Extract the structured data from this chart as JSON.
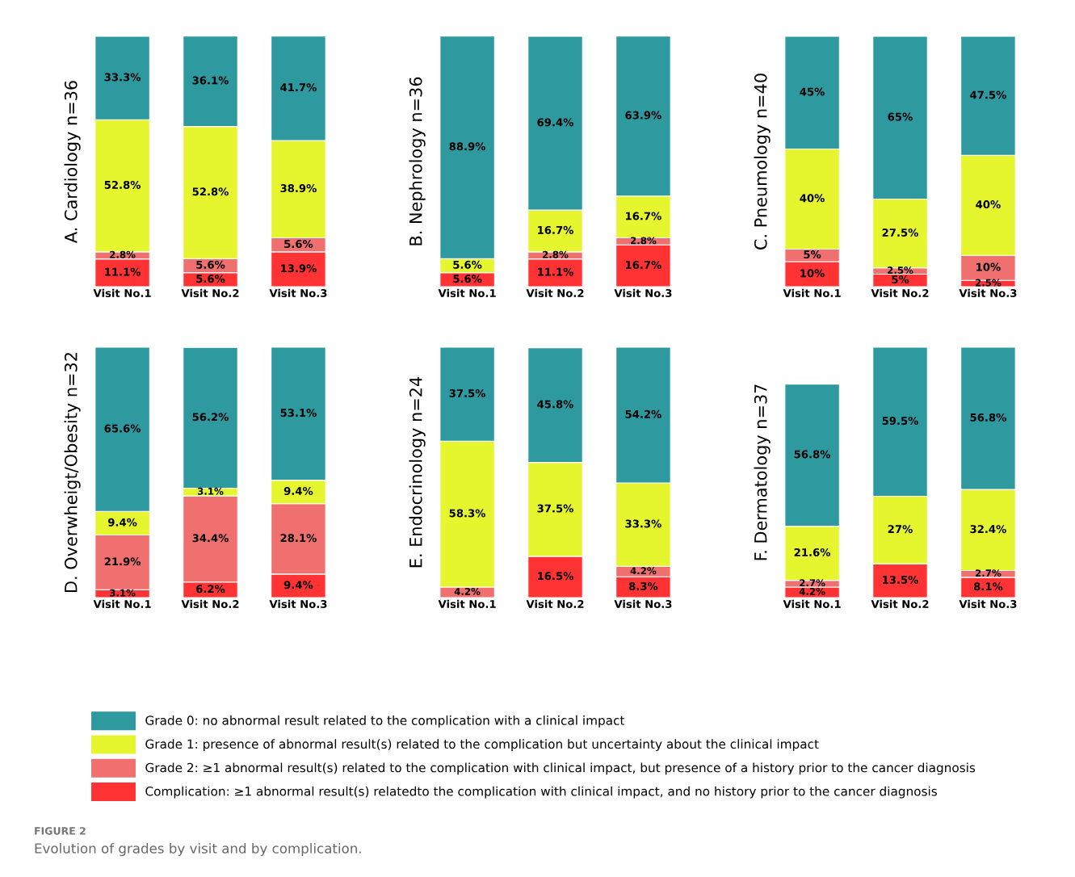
{
  "chart_data": [
    {
      "type": "bar",
      "stacked": true,
      "ylabel": "A. Cardiology n=36",
      "categories": [
        "Visit No.1",
        "Visit No.2",
        "Visit No.3"
      ],
      "ylim": [
        0,
        100
      ],
      "tick_labels": "x",
      "legend": "bottom",
      "annotations": [
        "FIGURE 2",
        "Evolution of grades by visit and by complication."
      ],
      "series": [
        {
          "name": "Complication: ≥1 abnormal result(s) relatedto the complication with clinical impact, and no history prior to the cancer diagnosis",
          "color": "#ff3333",
          "values": [
            11.1,
            5.6,
            13.9
          ],
          "value_labels": [
            "11.1%",
            "5.6%",
            "13.9%"
          ]
        },
        {
          "name": "Grade 2: ≥1 abnormal result(s) related to the complication with clinical impact, but presence of a history prior to the cancer diagnosis",
          "color": "#f07070",
          "values": [
            2.8,
            5.6,
            5.6
          ],
          "value_labels": [
            "2.8%",
            "5.6%",
            "5.6%"
          ]
        },
        {
          "name": "Grade 1: presence of abnormal result(s) related to the complication but uncertainty about the clinical impact",
          "color": "#e5f52e",
          "values": [
            52.8,
            52.8,
            38.9
          ],
          "value_labels": [
            "52.8%",
            "52.8%",
            "38.9%"
          ]
        },
        {
          "name": "Grade 0: no abnormal result related to the complication with a clinical impact",
          "color": "#2e9aa0",
          "values": [
            33.3,
            36.1,
            41.7
          ],
          "value_labels": [
            "33.3%",
            "36.1%",
            "41.7%"
          ]
        }
      ]
    },
    {
      "type": "bar",
      "stacked": true,
      "ylabel": "B. Nephrology n=36",
      "categories": [
        "Visit No.1",
        "Visit No.2",
        "Visit No.3"
      ],
      "ylim": [
        0,
        100
      ],
      "tick_labels": "x",
      "series": [
        {
          "color": "#ff3333",
          "values": [
            5.6,
            11.1,
            16.7
          ],
          "value_labels": [
            "5.6%",
            "11.1%",
            "16.7%"
          ]
        },
        {
          "color": "#f07070",
          "values": [
            null,
            2.8,
            2.8
          ],
          "value_labels": [
            null,
            "2.8%",
            "2.8%"
          ]
        },
        {
          "color": "#e5f52e",
          "values": [
            5.6,
            16.7,
            16.7
          ],
          "value_labels": [
            "5.6%",
            "16.7%",
            "16.7%"
          ]
        },
        {
          "color": "#2e9aa0",
          "values": [
            88.9,
            69.4,
            63.9
          ],
          "value_labels": [
            "88.9%",
            "69.4%",
            "63.9%"
          ]
        }
      ]
    },
    {
      "type": "bar",
      "stacked": true,
      "ylabel": "C. Pneumology n=40",
      "categories": [
        "Visit No.1",
        "Visit No.2",
        "Visit No.3"
      ],
      "ylim": [
        0,
        100
      ],
      "tick_labels": "x",
      "series": [
        {
          "color": "#ff3333",
          "values": [
            10,
            5,
            2.5
          ],
          "value_labels": [
            "10%",
            "5%",
            "2.5%"
          ]
        },
        {
          "color": "#f07070",
          "values": [
            5,
            2.5,
            10
          ],
          "value_labels": [
            "5%",
            "2.5%",
            "10%"
          ]
        },
        {
          "color": "#e5f52e",
          "values": [
            40,
            27.5,
            40
          ],
          "value_labels": [
            "40%",
            "27.5%",
            "40%"
          ]
        },
        {
          "color": "#2e9aa0",
          "values": [
            45,
            65,
            47.5
          ],
          "value_labels": [
            "45%",
            "65%",
            "47.5%"
          ]
        }
      ]
    },
    {
      "type": "bar",
      "stacked": true,
      "ylabel": "D. Overwheigt/Obesity n=32",
      "categories": [
        "Visit No.1",
        "Visit No.2",
        "Visit No.3"
      ],
      "ylim": [
        0,
        100
      ],
      "tick_labels": "x",
      "series": [
        {
          "color": "#ff3333",
          "values": [
            3.1,
            6.2,
            9.4
          ],
          "value_labels": [
            "3.1%",
            "6.2%",
            "9.4%"
          ]
        },
        {
          "color": "#f07070",
          "values": [
            21.9,
            34.4,
            28.1
          ],
          "value_labels": [
            "21.9%",
            "34.4%",
            "28.1%"
          ]
        },
        {
          "color": "#e5f52e",
          "values": [
            9.4,
            3.1,
            9.4
          ],
          "value_labels": [
            "9.4%",
            "3.1%",
            "9.4%"
          ]
        },
        {
          "color": "#2e9aa0",
          "values": [
            65.6,
            56.2,
            53.1
          ],
          "value_labels": [
            "65.6%",
            "56.2%",
            "53.1%"
          ]
        }
      ]
    },
    {
      "type": "bar",
      "stacked": true,
      "ylabel": "E. Endocrinology n=24",
      "categories": [
        "Visit No.1",
        "Visit No.2",
        "Visit No.3"
      ],
      "ylim": [
        0,
        100
      ],
      "tick_labels": "x",
      "series": [
        {
          "color": "#ff3333",
          "values": [
            null,
            16.5,
            8.3
          ],
          "value_labels": [
            null,
            "16.5%",
            "8.3%"
          ]
        },
        {
          "color": "#f07070",
          "values": [
            4.2,
            null,
            4.2
          ],
          "value_labels": [
            "4.2%",
            null,
            "4.2%"
          ]
        },
        {
          "color": "#e5f52e",
          "values": [
            58.3,
            37.5,
            33.3
          ],
          "value_labels": [
            "58.3%",
            "37.5%",
            "33.3%"
          ]
        },
        {
          "color": "#2e9aa0",
          "values": [
            37.5,
            45.8,
            54.2
          ],
          "value_labels": [
            "37.5%",
            "45.8%",
            "54.2%"
          ]
        }
      ]
    },
    {
      "type": "bar",
      "stacked": true,
      "ylabel": "F. Dermatology n=37",
      "categories": [
        "Visit No.1",
        "Visit No.2",
        "Visit No.3"
      ],
      "ylim": [
        0,
        100
      ],
      "tick_labels": "x",
      "series": [
        {
          "color": "#ff3333",
          "values": [
            4.2,
            13.5,
            8.1
          ],
          "value_labels": [
            "4.2%",
            "13.5%",
            "8.1%"
          ]
        },
        {
          "color": "#f07070",
          "values": [
            2.7,
            null,
            2.7
          ],
          "value_labels": [
            "2.7%",
            null,
            "2.7%"
          ]
        },
        {
          "color": "#e5f52e",
          "values": [
            21.6,
            27,
            32.4
          ],
          "value_labels": [
            "21.6%",
            "27%",
            "32.4%"
          ]
        },
        {
          "color": "#2e9aa0",
          "values": [
            56.8,
            59.5,
            56.8
          ],
          "value_labels": [
            "56.8%",
            "59.5%",
            "56.8%"
          ]
        }
      ]
    }
  ]
}
